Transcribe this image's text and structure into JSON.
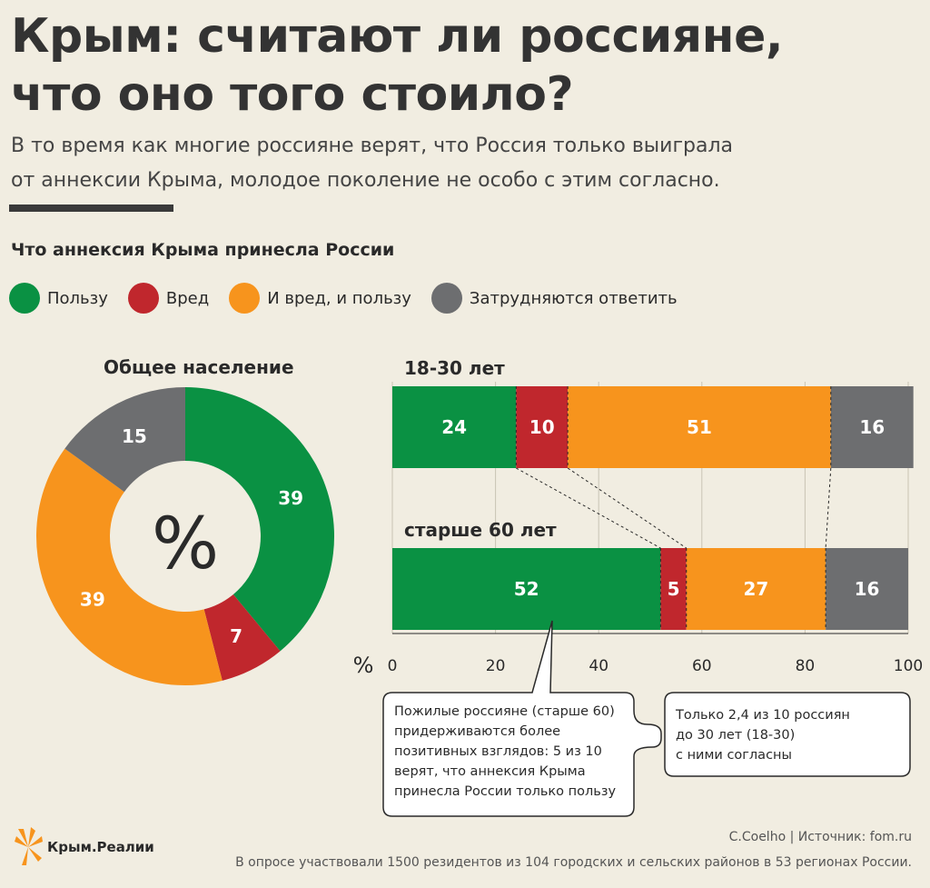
{
  "header": {
    "title_line1": "Крым: считают ли россияне,",
    "title_line2": "что оно того стоило?",
    "subtitle_line1": "В то время как многие россияне верят, что Россия только выиграла",
    "subtitle_line2": "от аннексии Крыма, молодое поколение не особо с этим согласно."
  },
  "chart_heading": "Что аннексия Крыма принесла России",
  "legend": [
    {
      "label": "Пользу",
      "color": "#0a9143"
    },
    {
      "label": "Вред",
      "color": "#c0272d"
    },
    {
      "label": "И вред, и пользу",
      "color": "#f7941d"
    },
    {
      "label": "Затрудняются ответить",
      "color": "#6d6e70"
    }
  ],
  "chart_data": [
    {
      "type": "pie",
      "title": "Общее население",
      "center_label": "%",
      "labels": [
        "Пользу",
        "Вред",
        "И вред, и пользу",
        "Затрудняются ответить"
      ],
      "values": [
        39,
        7,
        39,
        15
      ],
      "colors": [
        "#0a9143",
        "#c0272d",
        "#f7941d",
        "#6d6e70"
      ]
    },
    {
      "type": "bar",
      "orientation": "horizontal",
      "stacked": true,
      "categories": [
        "18-30 лет",
        "старше 60 лет"
      ],
      "series": [
        {
          "name": "Пользу",
          "values": [
            24,
            52
          ],
          "color": "#0a9143"
        },
        {
          "name": "Вред",
          "values": [
            10,
            5
          ],
          "color": "#c0272d"
        },
        {
          "name": "И вред, и пользу",
          "values": [
            51,
            27
          ],
          "color": "#f7941d"
        },
        {
          "name": "Затрудняются ответить",
          "values": [
            16,
            16
          ],
          "color": "#6d6e70"
        }
      ],
      "xlabel": "%",
      "xlim": [
        0,
        100
      ],
      "xticks": [
        0,
        20,
        40,
        60,
        80,
        100
      ],
      "grid": true
    }
  ],
  "callouts": {
    "left_lines": [
      "Пожилые россияне (старше 60)",
      "придерживаются более",
      "позитивных взглядов: 5 из 10",
      "верят, что аннексия Крыма",
      "принесла России только пользу"
    ],
    "right_lines": [
      "Только 2,4 из 10 россиян",
      "до 30 лет (18-30)",
      "с ними согласны"
    ]
  },
  "footer": {
    "logo_text": "Крым.Реалии",
    "credit": "C.Coelho | Источник: fom.ru",
    "note": "В опросе участвовали 1500 резидентов из 104 городских и сельских районов в 53 регионах России."
  }
}
